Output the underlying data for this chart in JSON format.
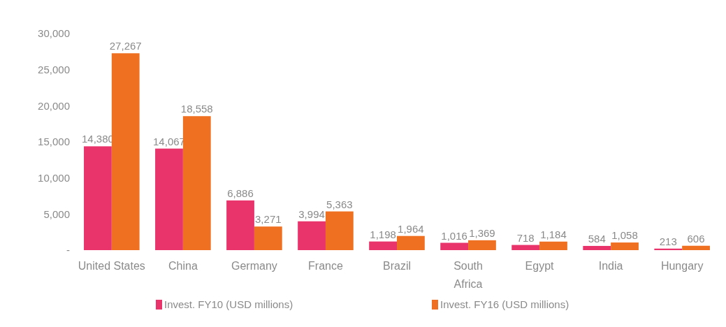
{
  "chart_data": {
    "type": "bar",
    "categories": [
      "United States",
      "China",
      "Germany",
      "France",
      "Brazil",
      "South\nAfrica",
      "Egypt",
      "India",
      "Hungary"
    ],
    "series": [
      {
        "name": "Invest. FY10 (USD millions)",
        "color": "#e8336b",
        "values": [
          14380,
          14067,
          6886,
          3994,
          1198,
          1016,
          718,
          584,
          213
        ],
        "value_labels": [
          "14,380",
          "14,067",
          "6,886",
          "3,994",
          "1,198",
          "1,016",
          "718",
          "584",
          "213"
        ]
      },
      {
        "name": "Invest. FY16 (USD millions)",
        "color": "#f07022",
        "values": [
          27267,
          18558,
          3271,
          5363,
          1964,
          1369,
          1184,
          1058,
          606
        ],
        "value_labels": [
          "27,267",
          "18,558",
          "3,271",
          "5,363",
          "1,964",
          "1,369",
          "1,184",
          "1,058",
          "606"
        ]
      }
    ],
    "ylim": [
      0,
      30000
    ],
    "yticks": [
      {
        "value": 0,
        "label": "-"
      },
      {
        "value": 5000,
        "label": "5,000"
      },
      {
        "value": 10000,
        "label": "10,000"
      },
      {
        "value": 15000,
        "label": "15,000"
      },
      {
        "value": 20000,
        "label": "20,000"
      },
      {
        "value": 25000,
        "label": "25,000"
      },
      {
        "value": 30000,
        "label": "30,000"
      }
    ],
    "legend": "bottom"
  }
}
